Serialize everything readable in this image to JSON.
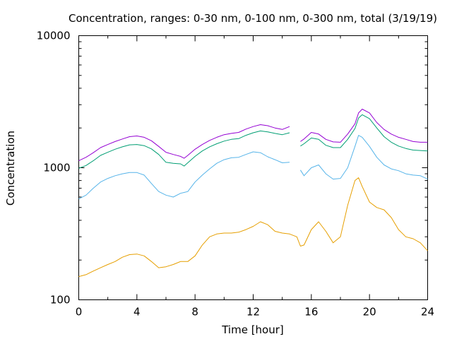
{
  "chart_data": {
    "type": "line",
    "title": "Concentration, ranges: 0-30 nm, 0-100 nm, 0-300 nm, total (3/19/19)",
    "xlabel": "Time [hour]",
    "ylabel": "Concentration",
    "xlim": [
      0,
      24
    ],
    "ylim": [
      100,
      10000
    ],
    "yscale": "log",
    "grid": false,
    "x_ticks": [
      0,
      4,
      8,
      12,
      16,
      20,
      24
    ],
    "x_tick_labels": [
      "0",
      "4",
      "8",
      "12",
      "16",
      "20",
      "24"
    ],
    "y_ticks": [
      100,
      1000,
      10000
    ],
    "y_tick_labels": [
      "100",
      "1000",
      "10000"
    ],
    "x": [
      0,
      0.5,
      1,
      1.5,
      2,
      2.5,
      3,
      3.5,
      4,
      4.5,
      5,
      5.5,
      6,
      6.5,
      7,
      7.25,
      7.5,
      8,
      8.5,
      9,
      9.5,
      10,
      10.5,
      11,
      11.5,
      12,
      12.5,
      13,
      13.5,
      14,
      14.5,
      15,
      15.25,
      15.5,
      16,
      16.5,
      17,
      17.5,
      18,
      18.5,
      19,
      19.25,
      19.5,
      20,
      20.5,
      21,
      21.5,
      22,
      22.5,
      23,
      23.5,
      24
    ],
    "series": [
      {
        "color": "#9400d3",
        "values": [
          1130,
          1200,
          1300,
          1420,
          1500,
          1580,
          1650,
          1720,
          1740,
          1700,
          1600,
          1450,
          1310,
          1260,
          1220,
          1180,
          1240,
          1380,
          1500,
          1610,
          1700,
          1780,
          1820,
          1850,
          1960,
          2050,
          2120,
          2080,
          2000,
          1950,
          2050,
          null,
          1580,
          1650,
          1850,
          1800,
          1640,
          1570,
          1560,
          1800,
          2150,
          2600,
          2780,
          2600,
          2200,
          1950,
          1800,
          1700,
          1640,
          1580,
          1560,
          1560
        ]
      },
      {
        "color": "#009e73",
        "values": [
          990,
          1040,
          1130,
          1240,
          1310,
          1380,
          1440,
          1490,
          1500,
          1470,
          1390,
          1260,
          1100,
          1080,
          1070,
          1030,
          1090,
          1220,
          1340,
          1440,
          1520,
          1590,
          1640,
          1660,
          1760,
          1840,
          1900,
          1870,
          1820,
          1780,
          1840,
          null,
          1460,
          1520,
          1680,
          1640,
          1480,
          1420,
          1420,
          1640,
          1980,
          2380,
          2520,
          2350,
          2000,
          1720,
          1560,
          1460,
          1400,
          1360,
          1350,
          1340
        ]
      },
      {
        "color": "#56b4e9",
        "values": [
          580,
          620,
          700,
          780,
          830,
          870,
          900,
          920,
          920,
          880,
          760,
          660,
          620,
          600,
          640,
          650,
          660,
          780,
          880,
          980,
          1080,
          1150,
          1190,
          1200,
          1260,
          1320,
          1300,
          1210,
          1150,
          1090,
          1100,
          null,
          960,
          870,
          1000,
          1050,
          900,
          820,
          830,
          1000,
          1450,
          1760,
          1700,
          1450,
          1200,
          1050,
          980,
          950,
          900,
          880,
          870,
          820
        ]
      },
      {
        "color": "#e69f00",
        "values": [
          150,
          155,
          165,
          175,
          185,
          195,
          210,
          220,
          222,
          215,
          195,
          175,
          178,
          185,
          195,
          195,
          195,
          215,
          260,
          300,
          315,
          320,
          320,
          325,
          340,
          360,
          390,
          370,
          330,
          320,
          315,
          300,
          255,
          260,
          340,
          390,
          330,
          270,
          300,
          520,
          800,
          840,
          720,
          550,
          500,
          480,
          420,
          340,
          300,
          290,
          270,
          235
        ]
      }
    ]
  }
}
